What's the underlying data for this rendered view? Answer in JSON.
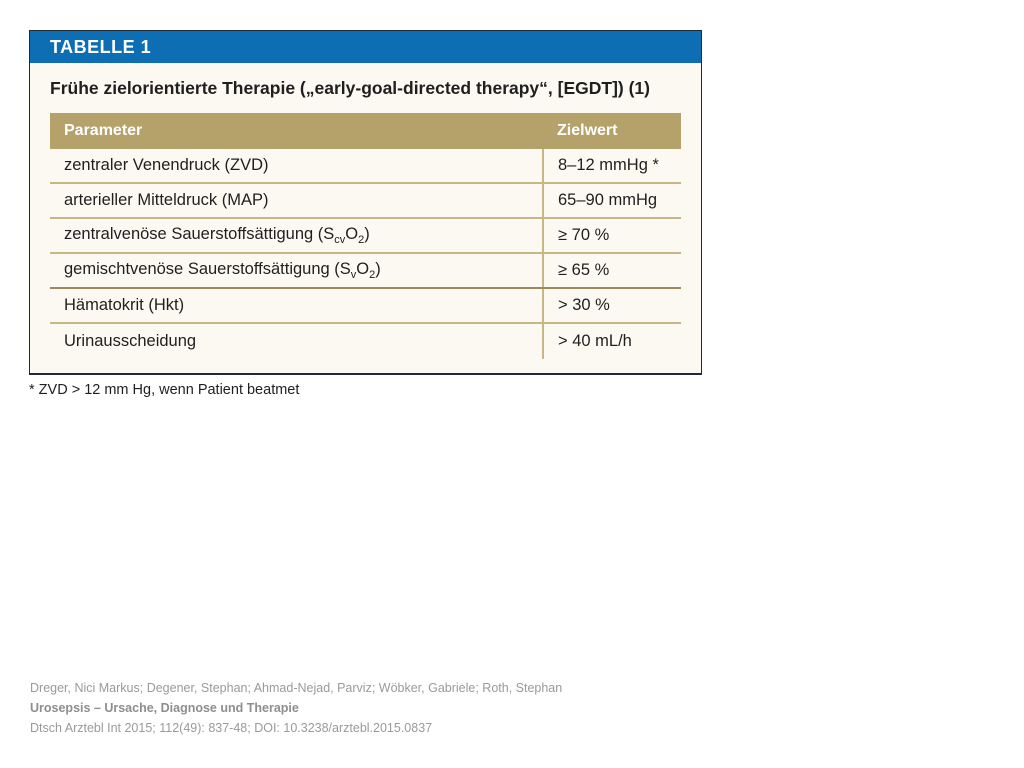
{
  "figure": {
    "label": "TABELLE 1",
    "title": "Frühe zielorientierte Therapie („early-goal-directed therapy“, [EGDT]) (1)",
    "colors": {
      "header": "#0d6eb4",
      "table_header": "#b5a16a",
      "rule": "#c8b684",
      "panel": "#fbf9f1"
    }
  },
  "table": {
    "headers": [
      "Parameter",
      "Zielwert"
    ],
    "rows": [
      {
        "param": "zentraler Venendruck (ZVD)",
        "value": "8–12 mmHg *"
      },
      {
        "param": "arterieller Mitteldruck (MAP)",
        "value": "65–90 mmHg"
      },
      {
        "param_main": "zentralvenöse Sauerstoffsättigung (S",
        "param_sub1": "cv",
        "param_mid": "O",
        "param_sub2": "2",
        "param_end": ")",
        "value": "≥ 70 %"
      },
      {
        "param_main": "gemischtvenöse Sauerstoffsättigung (S",
        "param_sub1": "v",
        "param_mid": "O",
        "param_sub2": "2",
        "param_end": ")",
        "value": "≥ 65 %"
      },
      {
        "param": "Hämatokrit (Hkt)",
        "value": "> 30 %"
      },
      {
        "param": "Urinausscheidung",
        "value": "> 40 mL/h"
      }
    ]
  },
  "footnote": "* ZVD > 12 mm Hg, wenn Patient beatmet",
  "citation": {
    "authors": "Dreger, Nici Markus; Degener, Stephan; Ahmad-Nejad, Parviz; Wöbker, Gabriele; Roth, Stephan",
    "title": "Urosepsis – Ursache, Diagnose und Therapie",
    "source": "Dtsch Arztebl Int 2015; 112(49): 837-48; DOI: 10.3238/arztebl.2015.0837"
  }
}
